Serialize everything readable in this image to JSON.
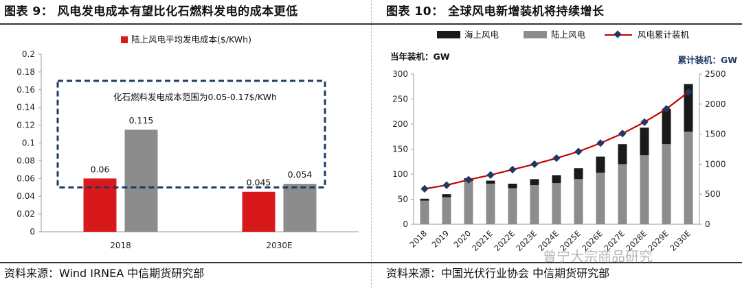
{
  "figures": {
    "left": {
      "title": "图表 9：  风电发电成本有望比化石燃料发电的成本更低",
      "source": "资料来源：Wind IRNEA  中信期货研究部"
    },
    "right": {
      "title": "图表 10：  全球风电新增装机将持续增长",
      "source": "资料来源：中国光伏行业协会  中信期货研究部"
    }
  },
  "watermark": "曾宁大宗商品研究",
  "chart_data": [
    {
      "type": "bar",
      "title": "",
      "categories": [
        "2018",
        "2030E"
      ],
      "series": [
        {
          "name": "陆上风电平均发电成本($/KWh)",
          "values": [
            0.06,
            0.045
          ],
          "color": "#d7191c"
        },
        {
          "values": [
            0.115,
            0.054
          ],
          "color": "#8c8c8c"
        }
      ],
      "data_labels": [
        "0.06",
        "0.115",
        "0.045",
        "0.054"
      ],
      "y_ticks": [
        "0",
        "0.02",
        "0.04",
        "0.06",
        "0.08",
        "0.1",
        "0.12",
        "0.14",
        "0.16",
        "0.18",
        "0.2"
      ],
      "ylim": [
        0,
        0.2
      ],
      "grid": false,
      "legend": "top",
      "annotation": {
        "text": "化石燃料发电成本范围为0.05-0.17$/KWh",
        "range": [
          0.05,
          0.17
        ],
        "color": "#1f3864"
      }
    },
    {
      "type": "bar",
      "title": "",
      "categories": [
        "2018",
        "2019",
        "2020",
        "2021E",
        "2022E",
        "2023E",
        "2024E",
        "2025E",
        "2026E",
        "2027E",
        "2028E",
        "2029E",
        "2030E"
      ],
      "series": [
        {
          "name": "海上风电",
          "type": "stacked-bar",
          "axis": "left",
          "color": "#1a1a1a",
          "values": [
            4,
            6,
            6,
            6,
            9,
            12,
            16,
            22,
            32,
            40,
            55,
            70,
            95
          ]
        },
        {
          "name": "陆上风电",
          "type": "stacked-bar",
          "axis": "left",
          "color": "#8c8c8c",
          "values": [
            47,
            54,
            86,
            81,
            72,
            78,
            82,
            90,
            103,
            120,
            138,
            160,
            185
          ]
        },
        {
          "name": "风电累计装机",
          "type": "line",
          "axis": "right",
          "color": "#c00000",
          "marker_color": "#1f3864",
          "values": [
            590,
            650,
            740,
            820,
            910,
            1000,
            1100,
            1210,
            1350,
            1510,
            1700,
            1920,
            2200
          ]
        }
      ],
      "y_left": {
        "label": "当年装机：GW",
        "ticks": [
          "0",
          "50",
          "100",
          "150",
          "200",
          "250",
          "300"
        ],
        "range": [
          0,
          300
        ]
      },
      "y_right": {
        "label": "累计装机：GW",
        "ticks": [
          "0",
          "500",
          "1000",
          "1500",
          "2000",
          "2500"
        ],
        "range": [
          0,
          2500
        ]
      },
      "grid": false,
      "legend": "top"
    }
  ]
}
